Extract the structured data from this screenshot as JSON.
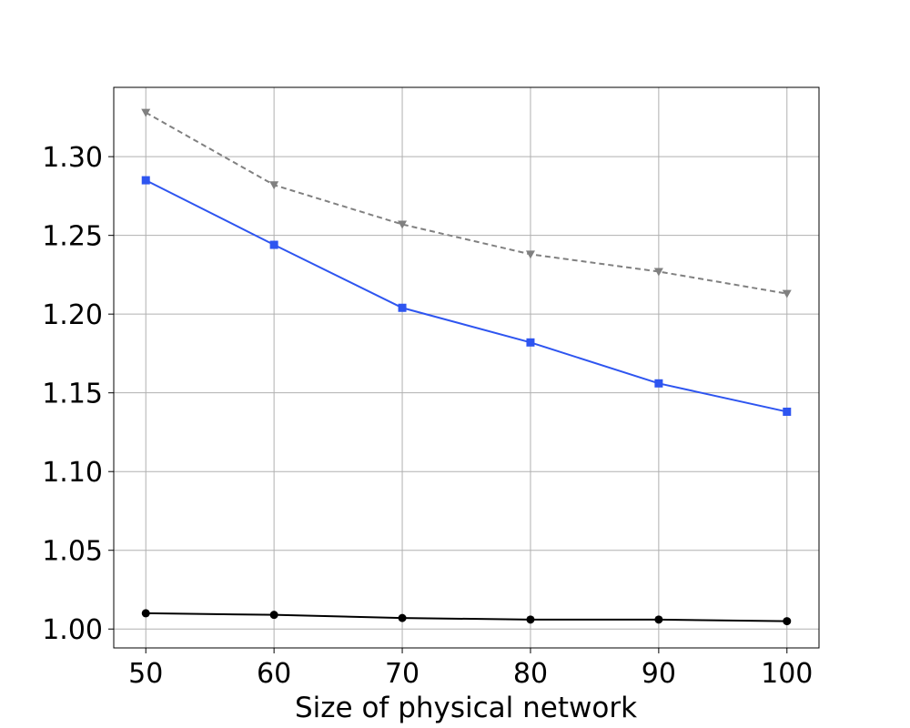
{
  "chart_data": {
    "type": "line",
    "title": "",
    "xlabel": "Size of physical network",
    "ylabel": "",
    "x": [
      50,
      60,
      70,
      80,
      90,
      100
    ],
    "xticks": [
      "50",
      "60",
      "70",
      "80",
      "90",
      "100"
    ],
    "yticks": [
      "1.00",
      "1.05",
      "1.10",
      "1.15",
      "1.20",
      "1.25",
      "1.30"
    ],
    "xlim": [
      47.5,
      102.5
    ],
    "ylim": [
      0.988,
      1.344
    ],
    "grid": true,
    "series": [
      {
        "values": [
          1.328,
          1.282,
          1.257,
          1.238,
          1.227,
          1.213
        ],
        "color": "#808080",
        "linestyle": "dashed",
        "marker": "triangle-down"
      },
      {
        "values": [
          1.285,
          1.244,
          1.204,
          1.182,
          1.156,
          1.138
        ],
        "color": "#2e55f0",
        "linestyle": "solid",
        "marker": "square"
      },
      {
        "values": [
          1.01,
          1.009,
          1.007,
          1.006,
          1.006,
          1.005
        ],
        "color": "#000000",
        "linestyle": "solid",
        "marker": "circle"
      }
    ]
  }
}
